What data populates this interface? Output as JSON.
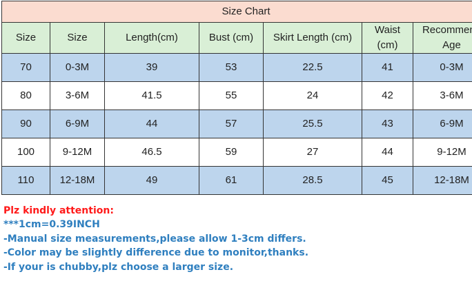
{
  "title": "Size Chart",
  "headers": [
    "Size",
    "Size",
    "Length(cm)",
    "Bust (cm)",
    "Skirt Length (cm)",
    "Waist (cm)",
    "Recommend Age"
  ],
  "rows": [
    [
      "70",
      "0-3M",
      "39",
      "53",
      "22.5",
      "41",
      "0-3M"
    ],
    [
      "80",
      "3-6M",
      "41.5",
      "55",
      "24",
      "42",
      "3-6M"
    ],
    [
      "90",
      "6-9M",
      "44",
      "57",
      "25.5",
      "43",
      "6-9M"
    ],
    [
      "100",
      "9-12M",
      "46.5",
      "59",
      "27",
      "44",
      "9-12M"
    ],
    [
      "110",
      "12-18M",
      "49",
      "61",
      "28.5",
      "45",
      "12-18M"
    ]
  ],
  "notes": {
    "attention": "Plz kindly attention:",
    "lines": [
      "***1cm=0.39INCH",
      "-Manual size measurements,please allow 1-3cm differs.",
      "-Color may be slightly difference due to monitor,thanks.",
      "-If your is chubby,plz choose a larger size."
    ]
  },
  "colors": {
    "title_bg": "#fbdcd0",
    "header_bg": "#d9efd6",
    "row_alt_bg": "#bdd5ed",
    "attention_text": "#ff1a1a",
    "notes_text": "#2f7fbf"
  }
}
